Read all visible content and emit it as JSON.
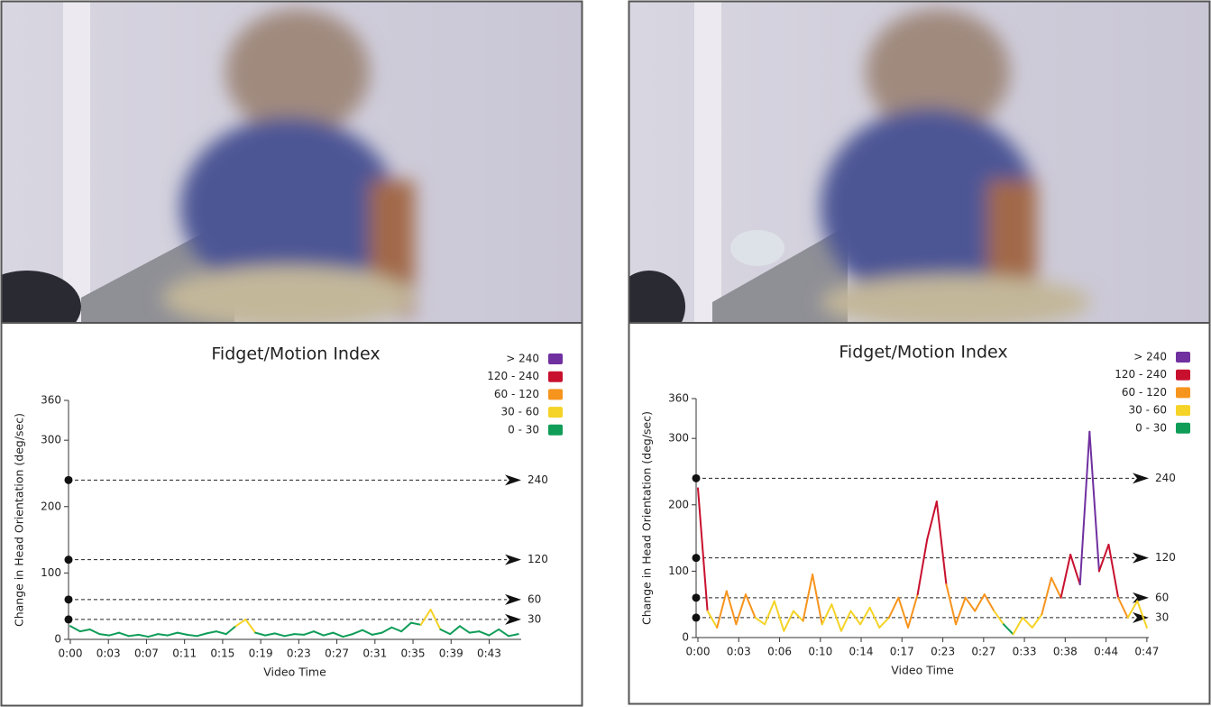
{
  "chart_data": [
    {
      "type": "line",
      "title": "Fidget/Motion Index",
      "xlabel": "Video Time",
      "ylabel": "Change in Head Orientation (deg/sec)",
      "legend": [
        {
          "label": "> 240",
          "color": "#7030a0"
        },
        {
          "label": "120 - 240",
          "color": "#c8102e"
        },
        {
          "label": "60 - 120",
          "color": "#f7941d"
        },
        {
          "label": "30 - 60",
          "color": "#f5d327"
        },
        {
          "label": "0 - 30",
          "color": "#0f9d58"
        }
      ],
      "thresholds": [
        30,
        60,
        120,
        240
      ],
      "ylim": [
        0,
        360
      ],
      "yticks": [
        0,
        100,
        200,
        300,
        360
      ],
      "xlim": [
        0,
        46.3
      ],
      "xticks": [
        {
          "value": 0,
          "label": "0:00"
        },
        {
          "value": 3.91,
          "label": "0:03"
        },
        {
          "value": 7.82,
          "label": "0:07"
        },
        {
          "value": 11.73,
          "label": "0:11"
        },
        {
          "value": 15.64,
          "label": "0:15"
        },
        {
          "value": 19.55,
          "label": "0:19"
        },
        {
          "value": 23.46,
          "label": "0:23"
        },
        {
          "value": 27.37,
          "label": "0:27"
        },
        {
          "value": 31.28,
          "label": "0:31"
        },
        {
          "value": 35.19,
          "label": "0:35"
        },
        {
          "value": 39.1,
          "label": "0:39"
        },
        {
          "value": 43.01,
          "label": "0:43"
        }
      ],
      "x": [
        0,
        1,
        2,
        3,
        4,
        5,
        6,
        7,
        8,
        9,
        10,
        11,
        12,
        13,
        14,
        15,
        16,
        17,
        18,
        19,
        20,
        21,
        22,
        23,
        24,
        25,
        26,
        27,
        28,
        29,
        30,
        31,
        32,
        33,
        34,
        35,
        36,
        37,
        38,
        39,
        40,
        41,
        42,
        43,
        44,
        45,
        46
      ],
      "values": [
        20,
        12,
        15,
        8,
        6,
        10,
        5,
        7,
        4,
        8,
        6,
        10,
        7,
        5,
        9,
        12,
        8,
        20,
        30,
        10,
        6,
        9,
        5,
        8,
        7,
        12,
        6,
        10,
        4,
        8,
        14,
        7,
        10,
        18,
        12,
        25,
        22,
        45,
        15,
        8,
        20,
        10,
        12,
        6,
        15,
        5,
        8
      ]
    },
    {
      "type": "line",
      "title": "Fidget/Motion Index",
      "xlabel": "Video Time",
      "ylabel": "Change in Head Orientation (deg/sec)",
      "legend": [
        {
          "label": "> 240",
          "color": "#7030a0"
        },
        {
          "label": "120 - 240",
          "color": "#c8102e"
        },
        {
          "label": "60 - 120",
          "color": "#f7941d"
        },
        {
          "label": "30 - 60",
          "color": "#f5d327"
        },
        {
          "label": "0 - 30",
          "color": "#0f9d58"
        }
      ],
      "thresholds": [
        30,
        60,
        120,
        240
      ],
      "ylim": [
        0,
        360
      ],
      "yticks": [
        0,
        100,
        200,
        300,
        360
      ],
      "xlim": [
        0,
        47.2
      ],
      "xticks": [
        {
          "value": 0,
          "label": "0:00"
        },
        {
          "value": 4.27,
          "label": "0:03"
        },
        {
          "value": 8.55,
          "label": "0:06"
        },
        {
          "value": 12.82,
          "label": "0:10"
        },
        {
          "value": 17.09,
          "label": "0:14"
        },
        {
          "value": 21.36,
          "label": "0:17"
        },
        {
          "value": 25.64,
          "label": "0:23"
        },
        {
          "value": 29.91,
          "label": "0:27"
        },
        {
          "value": 34.18,
          "label": "0:33"
        },
        {
          "value": 38.45,
          "label": "0:38"
        },
        {
          "value": 42.73,
          "label": "0:44"
        },
        {
          "value": 47,
          "label": "0:47"
        }
      ],
      "x": [
        0,
        1,
        2,
        3,
        4,
        5,
        6,
        7,
        8,
        9,
        10,
        11,
        12,
        13,
        14,
        15,
        16,
        17,
        18,
        19,
        20,
        21,
        22,
        23,
        24,
        25,
        26,
        27,
        28,
        29,
        30,
        31,
        32,
        33,
        34,
        35,
        36,
        37,
        38,
        39,
        40,
        41,
        42,
        43,
        44,
        45,
        46,
        47
      ],
      "values": [
        225,
        40,
        15,
        70,
        20,
        65,
        30,
        20,
        55,
        10,
        40,
        25,
        95,
        20,
        50,
        10,
        40,
        20,
        45,
        15,
        30,
        60,
        15,
        65,
        148,
        205,
        80,
        20,
        60,
        40,
        65,
        40,
        20,
        5,
        30,
        15,
        35,
        90,
        60,
        125,
        80,
        310,
        100,
        140,
        60,
        30,
        55,
        15
      ]
    }
  ]
}
